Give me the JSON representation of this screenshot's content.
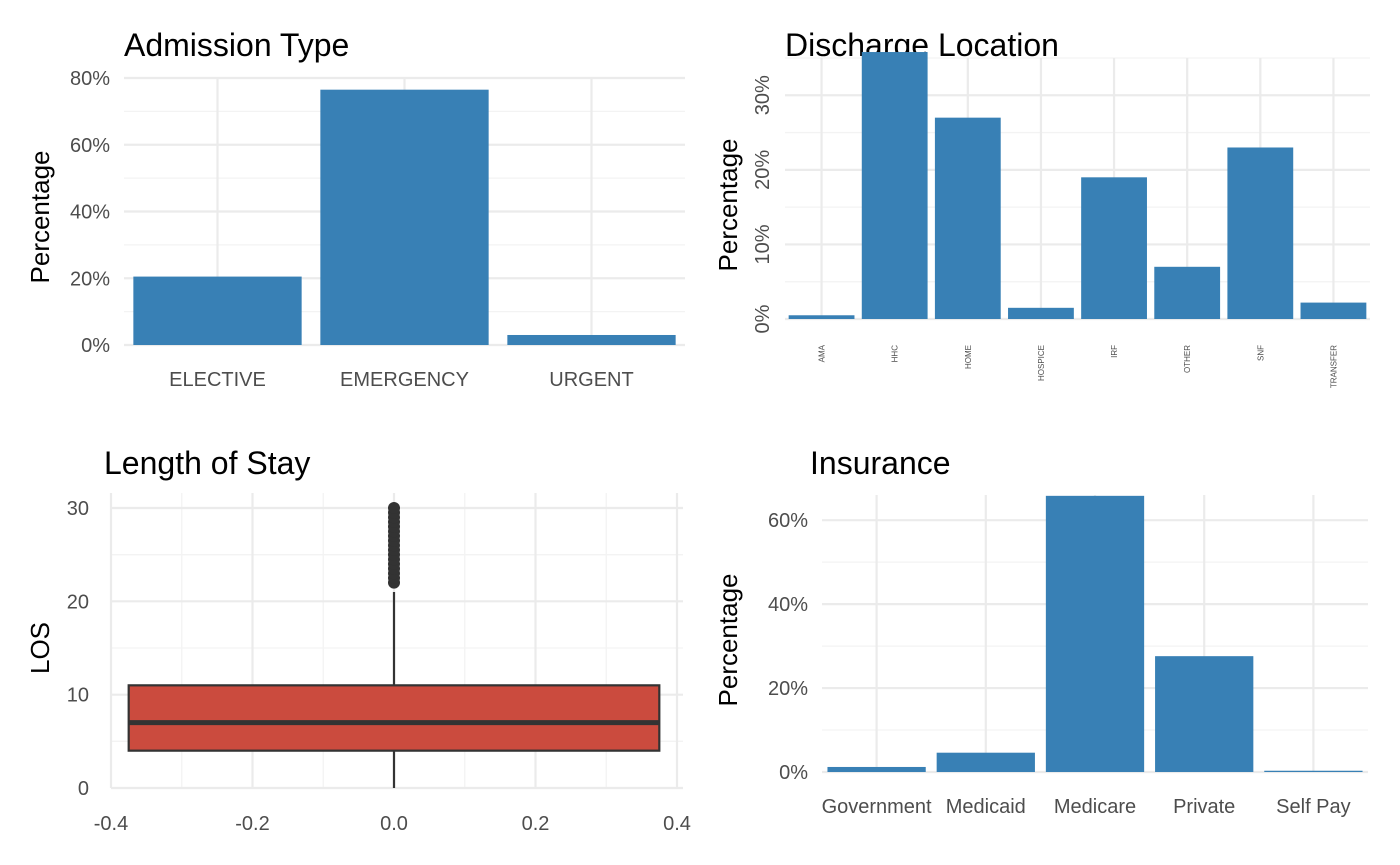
{
  "chart_data": [
    {
      "type": "bar",
      "title": "Admission Type",
      "xlabel": "",
      "ylabel": "Percentage",
      "categories": [
        "ELECTIVE",
        "EMERGENCY",
        "URGENT"
      ],
      "values": [
        20.5,
        76.5,
        3.0
      ],
      "ylim": [
        0,
        80
      ],
      "yticks": [
        0,
        20,
        40,
        60,
        80
      ],
      "ytick_labels": [
        "0%",
        "20%",
        "40%",
        "60%",
        "80%"
      ],
      "bar_color": "#3880b5",
      "grid": true
    },
    {
      "type": "bar",
      "title": "Discharge Location",
      "xlabel": "",
      "ylabel": "Percentage",
      "categories": [
        "AMA",
        "HHC",
        "HOME",
        "HOSPICE",
        "IRF",
        "OTHER",
        "SNF",
        "TRANSFER"
      ],
      "values": [
        0.5,
        35.8,
        27.0,
        1.5,
        19.0,
        7.0,
        23.0,
        2.2
      ],
      "ylim": [
        0,
        35
      ],
      "yticks": [
        0,
        10,
        20,
        30
      ],
      "ytick_labels": [
        "0%",
        "10%",
        "20%",
        "30%"
      ],
      "bar_color": "#3880b5",
      "grid": true
    },
    {
      "type": "box",
      "title": "Length of Stay",
      "xlabel": "",
      "ylabel": "LOS",
      "box": {
        "min": 0,
        "q1": 4,
        "median": 7,
        "q3": 11,
        "whisker_high": 21
      },
      "outliers": [
        22,
        22.5,
        23,
        23.5,
        24,
        24.5,
        25,
        25.5,
        26,
        26.5,
        27,
        27.5,
        28,
        28.5,
        29,
        29.5,
        30
      ],
      "x_range": [
        -0.375,
        0.375
      ],
      "xlim": [
        -0.4,
        0.4
      ],
      "xticks": [
        "-0.4",
        "-0.2",
        "0.0",
        "0.2",
        "0.4"
      ],
      "ylim": [
        0,
        30
      ],
      "yticks": [
        "0",
        "10",
        "20",
        "30"
      ],
      "fill_color": "#cb4b3e",
      "grid": true
    },
    {
      "type": "bar",
      "title": "Insurance",
      "xlabel": "",
      "ylabel": "Percentage",
      "categories": [
        "Government",
        "Medicaid",
        "Medicare",
        "Private",
        "Self Pay"
      ],
      "values": [
        1.2,
        4.6,
        65.8,
        27.6,
        0.3
      ],
      "ylim": [
        0,
        66
      ],
      "yticks": [
        0,
        20,
        40,
        60
      ],
      "ytick_labels": [
        "0%",
        "20%",
        "40%",
        "60%"
      ],
      "bar_color": "#3880b5",
      "grid": true
    }
  ]
}
